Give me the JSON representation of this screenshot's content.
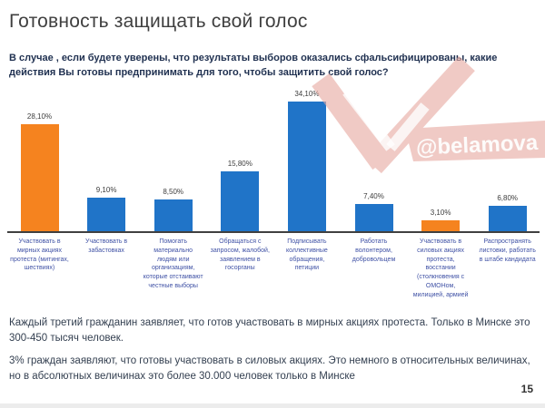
{
  "slide": {
    "title": "Готовность защищать свой голос",
    "subtitle": "В случае ,  если будете уверены, что результаты выборов оказались сфальсифицированы, какие действия Вы готовы предпринимать для того, чтобы защитить свой голос?",
    "watermark": "@belamova",
    "notes": [
      "Каждый третий гражданин заявляет, что готов участвовать в мирных акциях протеста. Только в Минске это 300-450 тысяч человек.",
      "3% граждан заявляют, что готовы участвовать в силовых акциях. Это немного в относительных величинах, но в абсолютных величинах это более 30.000 человек только в Минске"
    ],
    "page_number": "15"
  },
  "chart_data": {
    "type": "bar",
    "title": "Готовность защищать свой голос",
    "xlabel": "",
    "ylabel": "",
    "ylim": [
      0,
      36
    ],
    "grid": false,
    "legend": false,
    "categories": [
      "Участвовать в мирных акциях протеста (митингах, шествиях)",
      "Участвовать в забастовках",
      "Помогать материально людям или организациям, которые отстаивают честные выборы",
      "Обращаться с запросом, жалобой, заявлением в госорганы",
      "Подписывать коллективные обращения, петиции",
      "Работать волонтером, добровольцем",
      "Участвовать в силовых акциях протеста, восстании (столкновения с ОМОНом, милицией, армией",
      "Распространять листовки, работать в штабе кандидата"
    ],
    "values": [
      28.1,
      9.1,
      8.5,
      15.8,
      34.1,
      7.4,
      3.1,
      6.8
    ],
    "value_labels": [
      "28,10%",
      "9,10%",
      "8,50%",
      "15,80%",
      "34,10%",
      "7,40%",
      "3,10%",
      "6,80%"
    ],
    "bar_colors": [
      "#F5831F",
      "#2074C8",
      "#2074C8",
      "#2074C8",
      "#2074C8",
      "#2074C8",
      "#F5831F",
      "#2074C8"
    ],
    "colors": {
      "bar_blue": "#2074C8",
      "bar_orange": "#F5831F",
      "axis_label": "#3F51A5",
      "value_label": "#3D3D3D",
      "axis_line": "#404040",
      "watermark_pink": "#EFC6C0",
      "watermark_text": "#FFFFFF"
    }
  }
}
